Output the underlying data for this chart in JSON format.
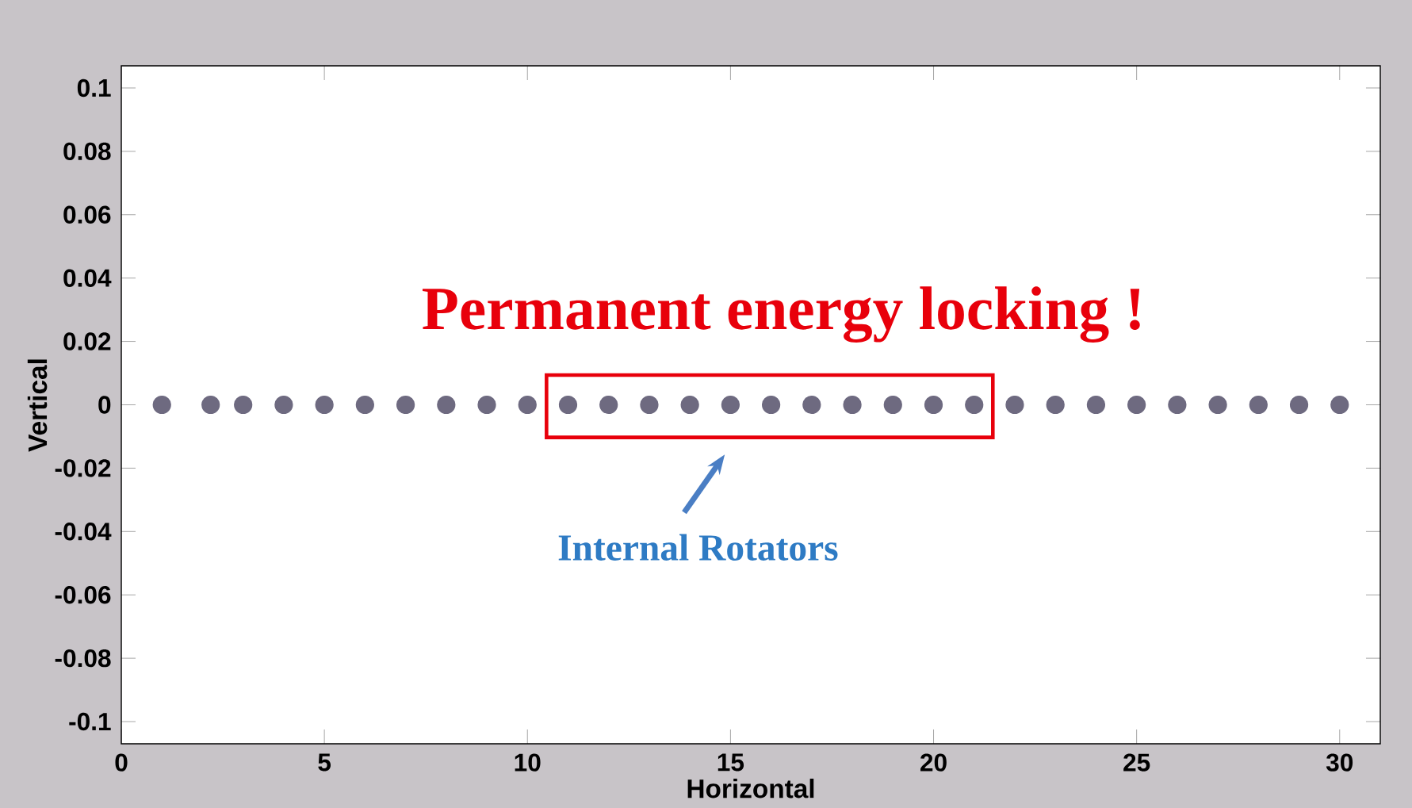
{
  "chart_data": {
    "type": "scatter",
    "xlabel": "Horizontal",
    "ylabel": "Vertical",
    "annotations": [
      "Permanent energy locking !",
      "Internal Rotators"
    ],
    "x": [
      1,
      2.2,
      3,
      4,
      5,
      6,
      7,
      8,
      9,
      10,
      11,
      12,
      13,
      14,
      15,
      16,
      17,
      18,
      19,
      20,
      21,
      22,
      23,
      24,
      25,
      26,
      27,
      28,
      29,
      30
    ],
    "series": [
      {
        "color": "#6e6a80",
        "values": [
          0,
          0,
          0,
          0,
          0,
          0,
          0,
          0,
          0,
          0,
          0,
          0,
          0,
          0,
          0,
          0,
          0,
          0,
          0,
          0,
          0,
          0,
          0,
          0,
          0,
          0,
          0,
          0,
          0,
          0
        ]
      }
    ],
    "xlim": [
      0,
      31
    ],
    "ylim": [
      -0.107,
      0.107
    ],
    "xticks": [
      0,
      5,
      10,
      15,
      20,
      25,
      30
    ],
    "yticks": [
      -0.1,
      -0.08,
      -0.06,
      -0.04,
      -0.02,
      0,
      0.02,
      0.04,
      0.06,
      0.08,
      0.1
    ],
    "marker": "circle",
    "grid": false
  }
}
